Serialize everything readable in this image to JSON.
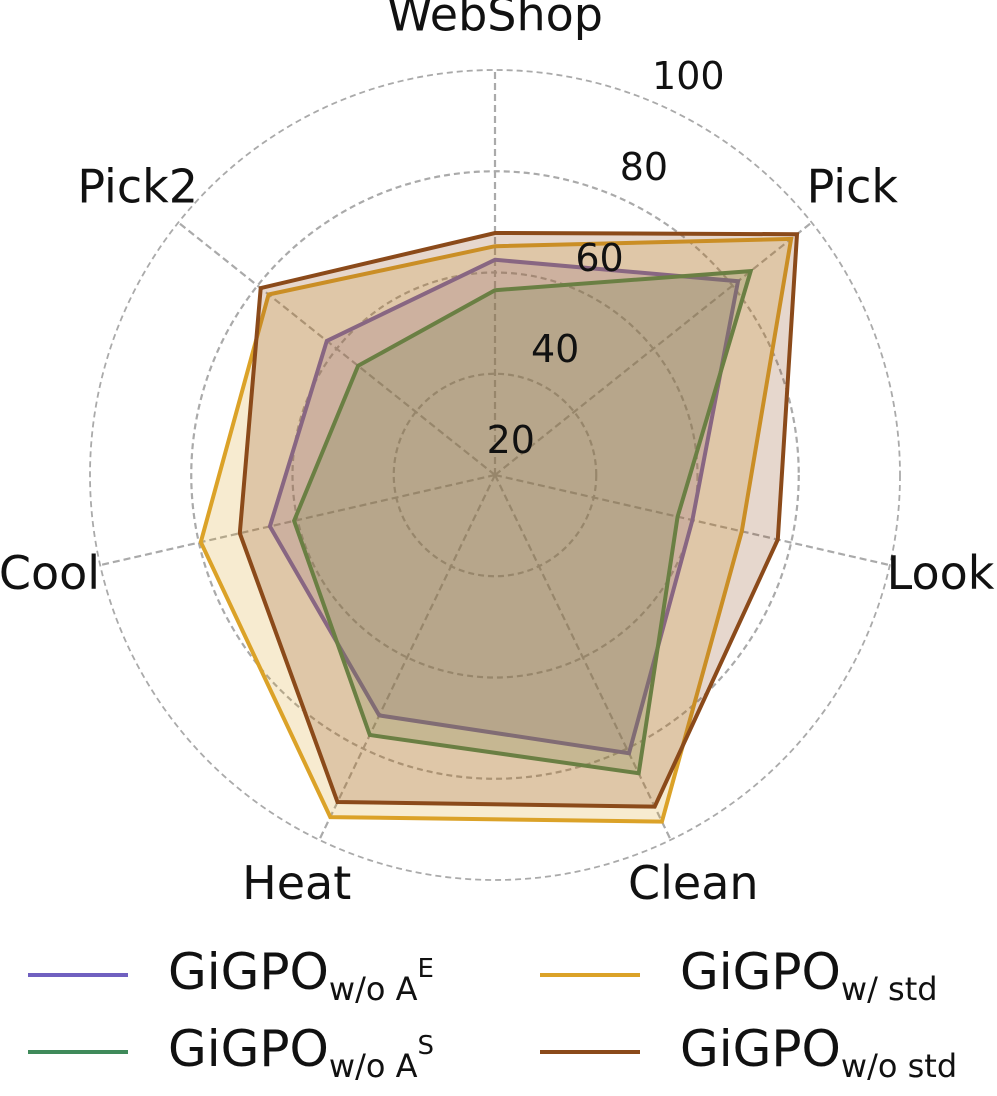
{
  "chart_data": {
    "type": "radar",
    "categories": [
      "WebShop",
      "Pick",
      "Look",
      "Clean",
      "Heat",
      "Cool",
      "Pick2"
    ],
    "ylim": [
      20,
      100
    ],
    "yticks": [
      20,
      40,
      60,
      80,
      100
    ],
    "grid": true,
    "series": [
      {
        "name": "GiGPO",
        "subscript": "w/o A",
        "superscript": "E",
        "color": "#7060c0",
        "values": [
          62.5,
          81.4,
          60,
          81,
          72.7,
          65.6,
          62.5
        ]
      },
      {
        "name": "GiGPO",
        "subscript": "w/o A",
        "superscript": "S",
        "color": "#3f8a5a",
        "values": [
          56.5,
          84.6,
          57,
          85.4,
          77,
          60.7,
          54.6
        ]
      },
      {
        "name": "GiGPO",
        "subscript": "w/ std",
        "color": "#dba228",
        "values": [
          65.2,
          94.8,
          70,
          96,
          95,
          79.6,
          77.2
        ]
      },
      {
        "name": "GiGPO",
        "subscript": "w/o std",
        "color": "#8b4a1a",
        "values": [
          67.8,
          96.3,
          77.3,
          92.7,
          91.7,
          71.7,
          79.2
        ]
      }
    ]
  }
}
